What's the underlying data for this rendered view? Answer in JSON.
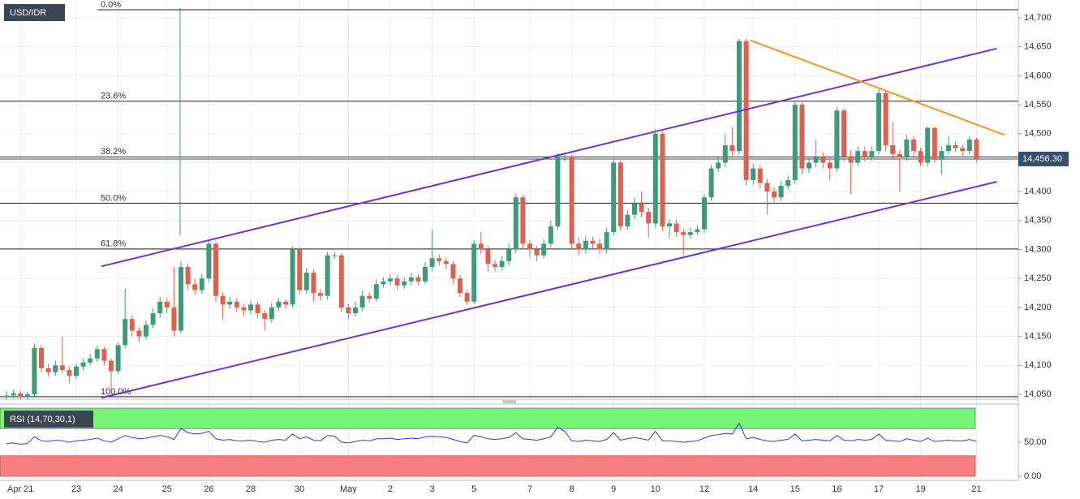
{
  "chart_data": {
    "type": "candlestick",
    "symbol": "USD/IDR",
    "categories": [
      null,
      null,
      "Apr 21",
      null,
      null,
      null,
      null,
      null,
      null,
      null,
      "23",
      null,
      null,
      null,
      null,
      null,
      "24",
      null,
      null,
      null,
      null,
      null,
      null,
      "25",
      null,
      null,
      null,
      null,
      null,
      "26",
      null,
      null,
      null,
      null,
      null,
      "28",
      null,
      null,
      null,
      null,
      null,
      null,
      "30",
      null,
      null,
      null,
      null,
      null,
      null,
      "May",
      null,
      null,
      null,
      null,
      null,
      "2",
      null,
      null,
      null,
      null,
      null,
      "3",
      null,
      null,
      null,
      null,
      null,
      "5",
      null,
      null,
      null,
      null,
      null,
      null,
      null,
      "7",
      null,
      null,
      null,
      null,
      null,
      "8",
      null,
      null,
      null,
      null,
      null,
      "9",
      null,
      null,
      null,
      null,
      null,
      "10",
      null,
      null,
      null,
      null,
      null,
      null,
      "12",
      null,
      null,
      null,
      null,
      null,
      null,
      "14",
      null,
      null,
      null,
      null,
      null,
      "15",
      null,
      null,
      null,
      null,
      null,
      "16",
      null,
      null,
      null,
      null,
      null,
      "17",
      null,
      null,
      null,
      null,
      null,
      "19",
      null,
      null,
      null,
      null,
      null,
      null,
      null,
      "21"
    ],
    "open": [
      14045,
      14048,
      14052,
      14045,
      14050,
      14130,
      14095,
      14088,
      14100,
      14092,
      14082,
      14098,
      14105,
      14112,
      14128,
      14108,
      14090,
      14135,
      14180,
      14160,
      14150,
      14170,
      14190,
      14210,
      14200,
      14160,
      14270,
      14240,
      14230,
      14250,
      14310,
      14220,
      14205,
      14210,
      14200,
      14195,
      14205,
      14190,
      14180,
      14200,
      14210,
      14205,
      14300,
      14230,
      14260,
      14225,
      14220,
      14290,
      14290,
      14200,
      14190,
      14200,
      14220,
      14215,
      14240,
      14245,
      14250,
      14238,
      14245,
      14252,
      14245,
      14270,
      14285,
      14280,
      14275,
      14250,
      14225,
      14210,
      14310,
      14300,
      14275,
      14270,
      14280,
      14300,
      14390,
      14310,
      14300,
      14290,
      14310,
      14340,
      14460,
      14460,
      14310,
      14300,
      14315,
      14310,
      14300,
      14330,
      14450,
      14340,
      14360,
      14380,
      14365,
      14345,
      14500,
      14340,
      14345,
      14330,
      14325,
      14330,
      14335,
      14390,
      14440,
      14450,
      14480,
      14470,
      14660,
      14420,
      14440,
      14415,
      14400,
      14390,
      14410,
      14420,
      14550,
      14440,
      14450,
      14460,
      14450,
      14440,
      14540,
      14460,
      14450,
      14470,
      14460,
      14470,
      14570,
      14480,
      14465,
      14460,
      14490,
      14470,
      14450,
      14510,
      14455,
      14470,
      14480,
      14475,
      14470,
      14490
    ],
    "high": [
      14055,
      14058,
      14056,
      14054,
      14138,
      14135,
      14102,
      14108,
      14150,
      14098,
      14104,
      14112,
      14120,
      14134,
      14132,
      14112,
      14140,
      14232,
      14186,
      14166,
      14178,
      14198,
      14218,
      14216,
      14270,
      14280,
      14276,
      14250,
      14258,
      14315,
      14312,
      14226,
      14218,
      14216,
      14206,
      14212,
      14210,
      14196,
      14208,
      14216,
      14214,
      14305,
      14304,
      14268,
      14266,
      14232,
      14296,
      14296,
      14294,
      14206,
      14210,
      14228,
      14226,
      14248,
      14252,
      14258,
      14256,
      14252,
      14260,
      14258,
      14278,
      14335,
      14292,
      14286,
      14280,
      14256,
      14230,
      14316,
      14330,
      14306,
      14282,
      14288,
      14310,
      14396,
      14394,
      14316,
      14306,
      14318,
      14350,
      14466,
      14466,
      14464,
      14322,
      14324,
      14322,
      14318,
      14338,
      14458,
      14454,
      14368,
      14390,
      14400,
      14372,
      14508,
      14504,
      14352,
      14352,
      14336,
      14338,
      14342,
      14396,
      14446,
      14460,
      14500,
      14512,
      14664,
      14664,
      14448,
      14446,
      14422,
      14408,
      14418,
      14428,
      14556,
      14554,
      14458,
      14490,
      14468,
      14458,
      14546,
      14544,
      14472,
      14478,
      14478,
      14478,
      14576,
      14574,
      14520,
      14472,
      14498,
      14496,
      14476,
      14512,
      14512,
      14478,
      14496,
      14486,
      14480,
      14496,
      14494
    ],
    "low": [
      14040,
      14044,
      14040,
      14040,
      14046,
      14088,
      14080,
      14082,
      14086,
      14070,
      14076,
      14092,
      14100,
      14106,
      14100,
      14060,
      14084,
      14130,
      14150,
      14140,
      14144,
      14164,
      14182,
      14190,
      14150,
      14155,
      14230,
      14222,
      14224,
      14244,
      14210,
      14180,
      14198,
      14192,
      14185,
      14188,
      14182,
      14160,
      14174,
      14194,
      14198,
      14200,
      14222,
      14224,
      14210,
      14212,
      14214,
      14284,
      14192,
      14180,
      14184,
      14194,
      14208,
      14210,
      14234,
      14238,
      14230,
      14232,
      14238,
      14238,
      14240,
      14262,
      14272,
      14266,
      14242,
      14218,
      14204,
      14206,
      14292,
      14262,
      14262,
      14264,
      14272,
      14294,
      14300,
      14286,
      14280,
      14284,
      14304,
      14334,
      14452,
      14300,
      14290,
      14294,
      14300,
      14292,
      14294,
      14324,
      14332,
      14334,
      14352,
      14356,
      14320,
      14338,
      14332,
      14320,
      14322,
      14290,
      14318,
      14326,
      14328,
      14384,
      14434,
      14442,
      14462,
      14464,
      14410,
      14412,
      14406,
      14360,
      14380,
      14384,
      14404,
      14414,
      14430,
      14432,
      14442,
      14440,
      14420,
      14434,
      14452,
      14396,
      14444,
      14452,
      14454,
      14464,
      14470,
      14456,
      14400,
      14454,
      14460,
      14444,
      14444,
      14450,
      14430,
      14464,
      14468,
      14462,
      14464,
      14450
    ],
    "close": [
      14048,
      14052,
      14045,
      14050,
      14130,
      14095,
      14088,
      14100,
      14092,
      14082,
      14098,
      14105,
      14112,
      14128,
      14108,
      14090,
      14135,
      14180,
      14160,
      14150,
      14170,
      14190,
      14210,
      14200,
      14160,
      14270,
      14240,
      14230,
      14250,
      14310,
      14220,
      14205,
      14210,
      14200,
      14195,
      14205,
      14190,
      14180,
      14200,
      14210,
      14205,
      14300,
      14230,
      14260,
      14225,
      14220,
      14290,
      14290,
      14200,
      14190,
      14200,
      14220,
      14215,
      14240,
      14245,
      14250,
      14238,
      14245,
      14252,
      14245,
      14270,
      14285,
      14280,
      14275,
      14250,
      14225,
      14210,
      14310,
      14300,
      14275,
      14270,
      14280,
      14300,
      14390,
      14310,
      14300,
      14290,
      14310,
      14340,
      14460,
      14460,
      14310,
      14300,
      14315,
      14310,
      14300,
      14330,
      14450,
      14340,
      14360,
      14380,
      14365,
      14345,
      14500,
      14340,
      14345,
      14330,
      14325,
      14330,
      14335,
      14390,
      14440,
      14450,
      14480,
      14470,
      14660,
      14420,
      14440,
      14415,
      14400,
      14390,
      14410,
      14420,
      14550,
      14440,
      14450,
      14460,
      14450,
      14440,
      14540,
      14460,
      14450,
      14470,
      14460,
      14470,
      14570,
      14480,
      14465,
      14460,
      14490,
      14470,
      14450,
      14510,
      14455,
      14470,
      14480,
      14475,
      14470,
      14490,
      14456.3
    ],
    "up_color": "#3d9b7c",
    "down_color": "#e0604f",
    "ylim": [
      14041.6,
      14730.8
    ],
    "yticks": [
      {
        "value": 14050,
        "label": "14,050"
      },
      {
        "value": 14100,
        "label": "14,100"
      },
      {
        "value": 14150,
        "label": "14,150"
      },
      {
        "value": 14200,
        "label": "14,200"
      },
      {
        "value": 14250,
        "label": "14,250"
      },
      {
        "value": 14300,
        "label": "14,300"
      },
      {
        "value": 14350,
        "label": "14,350"
      },
      {
        "value": 14400,
        "label": "14,400"
      },
      {
        "value": 14450,
        "label": "14,450"
      },
      {
        "value": 14500,
        "label": "14,500"
      },
      {
        "value": 14550,
        "label": "14,550"
      },
      {
        "value": 14600,
        "label": "14,600"
      },
      {
        "value": 14650,
        "label": "14,650"
      },
      {
        "value": 14700,
        "label": "14,700"
      }
    ],
    "last_price": {
      "value": 14456.3,
      "label": "14,456.30"
    },
    "grid": true,
    "fib_levels": [
      {
        "label": "0.0%",
        "value": 14714
      },
      {
        "label": "23.6%",
        "value": 14556
      },
      {
        "label": "38.2%",
        "value": 14460
      },
      {
        "label": "50.0%",
        "value": 14380
      },
      {
        "label": "61.8%",
        "value": 14301
      },
      {
        "label": "100.0%",
        "value": 14046
      }
    ],
    "trend_lines": [
      {
        "color": "#6a34d8",
        "from": [
          13.6,
          14271
        ],
        "to": [
          141.9,
          14647
        ]
      },
      {
        "color": "#6a34d8",
        "from": [
          13.6,
          14044
        ],
        "to": [
          141.9,
          14417
        ]
      },
      {
        "color": "#f7941d",
        "from": [
          106.6,
          14661
        ],
        "to": [
          143,
          14498
        ]
      }
    ],
    "rsi": {
      "label": "RSI (14,70,30,1)",
      "color": "#2a3fd6",
      "upper_band": 70,
      "lower_band": 30,
      "upper_color": "#76f576",
      "lower_color": "#fb7f7f",
      "ylim": [
        0,
        100
      ],
      "yticks": [
        {
          "value": 50,
          "label": "50.00"
        },
        {
          "value": 0,
          "label": "0.00"
        }
      ],
      "values": [
        48,
        49,
        47,
        48,
        58,
        52,
        51,
        53,
        52,
        50,
        52,
        53,
        54,
        56,
        52,
        50,
        55,
        60,
        57,
        55,
        56,
        58,
        60,
        58,
        54,
        70,
        64,
        62,
        63,
        66,
        55,
        53,
        54,
        52,
        52,
        53,
        51,
        50,
        53,
        54,
        53,
        62,
        55,
        58,
        53,
        52,
        60,
        59,
        50,
        49,
        51,
        53,
        52,
        55,
        55,
        56,
        54,
        55,
        56,
        55,
        58,
        59,
        58,
        57,
        54,
        51,
        49,
        60,
        58,
        55,
        54,
        55,
        57,
        64,
        55,
        54,
        53,
        55,
        58,
        72,
        66,
        52,
        51,
        53,
        52,
        51,
        54,
        64,
        53,
        55,
        57,
        55,
        53,
        66,
        52,
        52,
        51,
        50,
        51,
        52,
        56,
        60,
        61,
        63,
        62,
        78,
        55,
        57,
        54,
        52,
        51,
        53,
        54,
        62,
        52,
        53,
        54,
        53,
        52,
        60,
        53,
        52,
        54,
        53,
        54,
        62,
        53,
        52,
        51,
        55,
        53,
        51,
        56,
        51,
        52,
        53,
        52,
        52,
        54,
        51
      ]
    }
  }
}
